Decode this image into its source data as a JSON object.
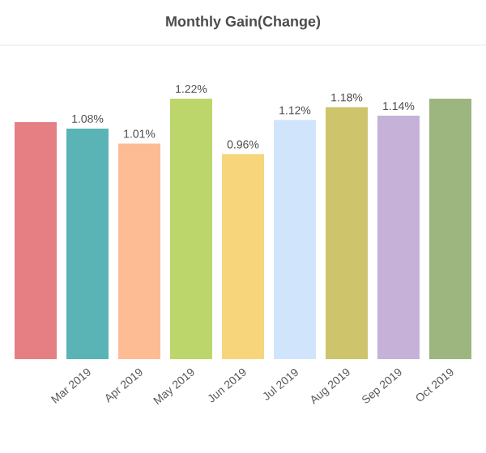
{
  "chart_data": {
    "type": "bar",
    "title": "Monthly Gain(Change)",
    "categories": [
      null,
      "Mar 2019",
      "Apr 2019",
      "May 2019",
      "Jun 2019",
      "Jul 2019",
      "Aug 2019",
      "Sep 2019",
      "Oct 2019"
    ],
    "values": [
      1.11,
      1.08,
      1.01,
      1.22,
      0.96,
      1.12,
      1.18,
      1.14,
      1.22
    ],
    "value_labels": [
      null,
      "1.08%",
      "1.01%",
      "1.22%",
      "0.96%",
      "1.12%",
      "1.18%",
      "1.14%",
      null
    ],
    "colors": [
      "#e57f84",
      "#5ab4b5",
      "#fdbc94",
      "#bcd66b",
      "#f7d57a",
      "#d0e5fb",
      "#cdc46c",
      "#c6b2d8",
      "#9db57f"
    ]
  }
}
